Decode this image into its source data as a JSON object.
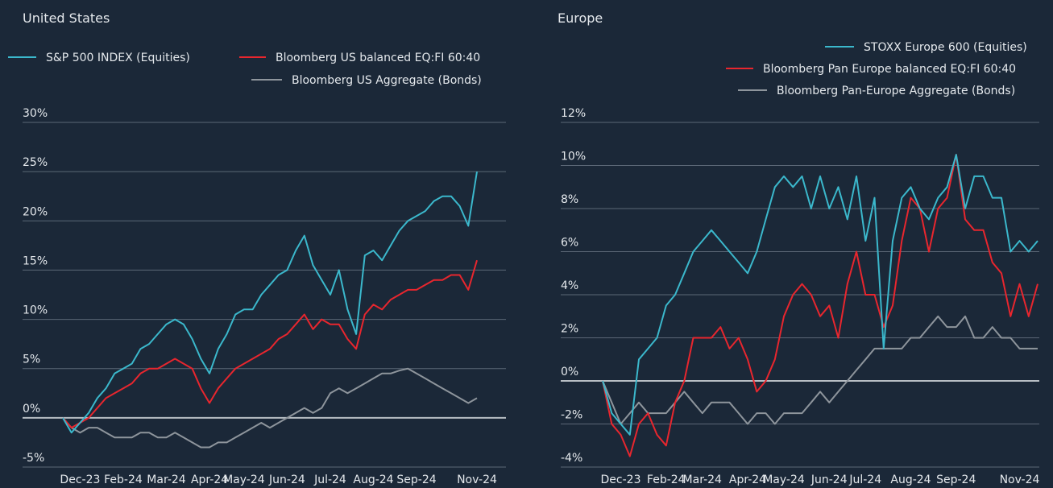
{
  "chart_data": [
    {
      "type": "line",
      "title": "United States",
      "categories": [
        null,
        null,
        "Dec-23",
        null,
        null,
        null,
        null,
        "Feb-24",
        null,
        null,
        null,
        null,
        "Mar-24",
        null,
        null,
        null,
        null,
        "Apr-24",
        null,
        null,
        null,
        "May-24",
        null,
        null,
        null,
        null,
        "Jun-24",
        null,
        null,
        null,
        null,
        "Jul-24",
        null,
        null,
        null,
        null,
        "Aug-24",
        null,
        null,
        null,
        null,
        "Sep-24",
        null,
        null,
        null,
        null,
        null,
        null,
        "Nov-24"
      ],
      "series": [
        {
          "name": "S&P 500 INDEX (Equities)",
          "color": "#3bb8cc",
          "values": [
            0,
            -1.5,
            -0.5,
            0.5,
            2,
            3,
            4.5,
            5,
            5.5,
            7,
            7.5,
            8.5,
            9.5,
            10,
            9.5,
            8,
            6,
            4.5,
            7,
            8.5,
            10.5,
            11,
            11,
            12.5,
            13.5,
            14.5,
            15,
            17,
            18.5,
            15.5,
            14,
            12.5,
            15,
            11,
            8.5,
            16.5,
            17,
            16,
            17.5,
            19,
            20,
            20.5,
            21,
            22,
            22.5,
            22.5,
            21.5,
            19.5,
            25
          ]
        },
        {
          "name": "Bloomberg US balanced EQ:FI 60:40",
          "color": "#e8262e",
          "values": [
            0,
            -1,
            -0.5,
            0,
            1,
            2,
            2.5,
            3,
            3.5,
            4.5,
            5,
            5,
            5.5,
            6,
            5.5,
            5,
            3,
            1.5,
            3,
            4,
            5,
            5.5,
            6,
            6.5,
            7,
            8,
            8.5,
            9.5,
            10.5,
            9,
            10,
            9.5,
            9.5,
            8,
            7,
            10.5,
            11.5,
            11,
            12,
            12.5,
            13,
            13,
            13.5,
            14,
            14,
            14.5,
            14.5,
            13,
            16
          ]
        },
        {
          "name": "Bloomberg US Aggregate (Bonds)",
          "color": "#8e959c",
          "values": [
            0,
            -1,
            -1.5,
            -1,
            -1,
            -1.5,
            -2,
            -2,
            -2,
            -1.5,
            -1.5,
            -2,
            -2,
            -1.5,
            -2,
            -2.5,
            -3,
            -3,
            -2.5,
            -2.5,
            -2,
            -1.5,
            -1,
            -0.5,
            -1,
            -0.5,
            0,
            0.5,
            1,
            0.5,
            1,
            2.5,
            3,
            2.5,
            3,
            3.5,
            4,
            4.5,
            4.5,
            4.8,
            5,
            4.5,
            4,
            3.5,
            3,
            2.5,
            2,
            1.5,
            2
          ]
        }
      ],
      "ylim": [
        -5,
        30
      ],
      "yticks": [
        {
          "value": -5,
          "label": "-5%"
        },
        {
          "value": 0,
          "label": "0%"
        },
        {
          "value": 5,
          "label": "5%"
        },
        {
          "value": 10,
          "label": "10%"
        },
        {
          "value": 15,
          "label": "15%"
        },
        {
          "value": 20,
          "label": "20%"
        },
        {
          "value": 25,
          "label": "25%"
        },
        {
          "value": 30,
          "label": "30%"
        }
      ],
      "grid": true,
      "legend": "top-left"
    },
    {
      "type": "line",
      "title": "Europe",
      "categories": [
        null,
        null,
        "Dec-23",
        null,
        null,
        null,
        null,
        "Feb-24",
        null,
        null,
        null,
        "Mar-24",
        null,
        null,
        null,
        null,
        "Apr-24",
        null,
        null,
        null,
        "May-24",
        null,
        null,
        null,
        null,
        "Jun-24",
        null,
        null,
        null,
        "Jul-24",
        null,
        null,
        null,
        null,
        "Aug-24",
        null,
        null,
        null,
        null,
        "Sep-24",
        null,
        null,
        null,
        null,
        null,
        null,
        "Nov-24",
        null,
        null
      ],
      "series": [
        {
          "name": "STOXX Europe 600 (Equities)",
          "color": "#3bb8cc",
          "values": [
            0,
            -1.5,
            -2,
            -2.5,
            1,
            1.5,
            2,
            3.5,
            4,
            5,
            6,
            6.5,
            7,
            6.5,
            6,
            5.5,
            5,
            6,
            7.5,
            9,
            9.5,
            9,
            9.5,
            8,
            9.5,
            8,
            9,
            7.5,
            9.5,
            6.5,
            8.5,
            1.5,
            6.5,
            8.5,
            9,
            8,
            7.5,
            8.5,
            9,
            10.5,
            8,
            9.5,
            9.5,
            8.5,
            8.5,
            6,
            6.5,
            6,
            6.5
          ]
        },
        {
          "name": "Bloomberg Pan Europe balanced EQ:FI 60:40",
          "color": "#e8262e",
          "values": [
            0,
            -2,
            -2.5,
            -3.5,
            -2,
            -1.5,
            -2.5,
            -3,
            -1,
            0,
            2,
            2,
            2,
            2.5,
            1.5,
            2,
            1,
            -0.5,
            0,
            1,
            3,
            4,
            4.5,
            4,
            3,
            3.5,
            2,
            4.5,
            6,
            4,
            4,
            2.5,
            3.5,
            6.5,
            8.5,
            8,
            6,
            8,
            8.5,
            10.5,
            7.5,
            7,
            7,
            5.5,
            5,
            3,
            4.5,
            3,
            4.5
          ]
        },
        {
          "name": "Bloomberg Pan-Europe Aggregate (Bonds)",
          "color": "#8e959c",
          "values": [
            0,
            -1,
            -2,
            -1.5,
            -1,
            -1.5,
            -1.5,
            -1.5,
            -1,
            -0.5,
            -1,
            -1.5,
            -1,
            -1,
            -1,
            -1.5,
            -2,
            -1.5,
            -1.5,
            -2,
            -1.5,
            -1.5,
            -1.5,
            -1,
            -0.5,
            -1,
            -0.5,
            0,
            0.5,
            1,
            1.5,
            1.5,
            1.5,
            1.5,
            2,
            2,
            2.5,
            3,
            2.5,
            2.5,
            3,
            2,
            2,
            2.5,
            2,
            2,
            1.5,
            1.5,
            1.5
          ]
        }
      ],
      "ylim": [
        -4,
        12
      ],
      "yticks": [
        {
          "value": -4,
          "label": "-4%"
        },
        {
          "value": -2,
          "label": "-2%"
        },
        {
          "value": 0,
          "label": "0%"
        },
        {
          "value": 2,
          "label": "2%"
        },
        {
          "value": 4,
          "label": "4%"
        },
        {
          "value": 6,
          "label": "6%"
        },
        {
          "value": 8,
          "label": "8%"
        },
        {
          "value": 10,
          "label": "10%"
        },
        {
          "value": 12,
          "label": "12%"
        }
      ],
      "grid": true,
      "legend": "top-right"
    }
  ]
}
